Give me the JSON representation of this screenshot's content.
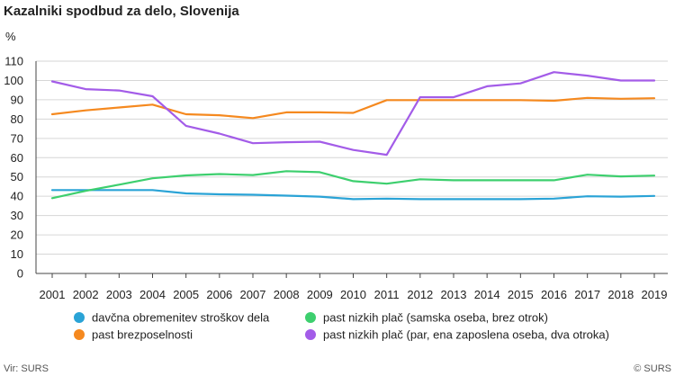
{
  "chart_data": {
    "type": "line",
    "title": "Kazalniki spodbud za delo, Slovenija",
    "ylabel": "%",
    "xlabel": "",
    "ylim": [
      0,
      110
    ],
    "yticks": [
      0,
      10,
      20,
      30,
      40,
      50,
      60,
      70,
      80,
      90,
      100,
      110
    ],
    "grid": true,
    "legend_position": "bottom",
    "x": [
      "2001",
      "2002",
      "2003",
      "2004",
      "2005",
      "2006",
      "2007",
      "2008",
      "2009",
      "2010",
      "2011",
      "2012",
      "2013",
      "2014",
      "2015",
      "2016",
      "2017",
      "2018",
      "2019"
    ],
    "series": [
      {
        "name": "davčna obremenitev stroškov dela",
        "color": "#2aa3d6",
        "values": [
          43.2,
          43.2,
          43.2,
          43.2,
          41.5,
          41.0,
          40.8,
          40.3,
          39.8,
          38.5,
          38.8,
          38.5,
          38.5,
          38.5,
          38.5,
          38.8,
          40.0,
          39.8,
          40.2
        ]
      },
      {
        "name": "past brezposelnosti",
        "color": "#f5891f",
        "values": [
          82.5,
          84.5,
          86.0,
          87.5,
          82.5,
          82.0,
          80.5,
          83.5,
          83.5,
          83.2,
          89.8,
          89.8,
          89.8,
          89.8,
          89.8,
          89.5,
          91.0,
          90.5,
          90.8
        ]
      },
      {
        "name": "past nizkih plač (samska oseba, brez otrok)",
        "color": "#3dcf6e",
        "values": [
          39.0,
          42.8,
          46.0,
          49.3,
          50.8,
          51.5,
          51.0,
          53.0,
          52.5,
          47.8,
          46.5,
          48.8,
          48.3,
          48.3,
          48.3,
          48.3,
          51.2,
          50.3,
          50.7
        ]
      },
      {
        "name": "past nizkih plač (par, ena zaposlena oseba, dva otroka)",
        "color": "#a35ce8",
        "values": [
          99.5,
          95.5,
          94.8,
          91.8,
          76.5,
          72.5,
          67.5,
          68.0,
          68.3,
          64.0,
          61.5,
          91.3,
          91.3,
          97.0,
          98.5,
          104.3,
          102.5,
          100.0,
          100.0
        ]
      }
    ]
  },
  "footer": {
    "source": "Vir: SURS",
    "copyright": "© SURS"
  }
}
